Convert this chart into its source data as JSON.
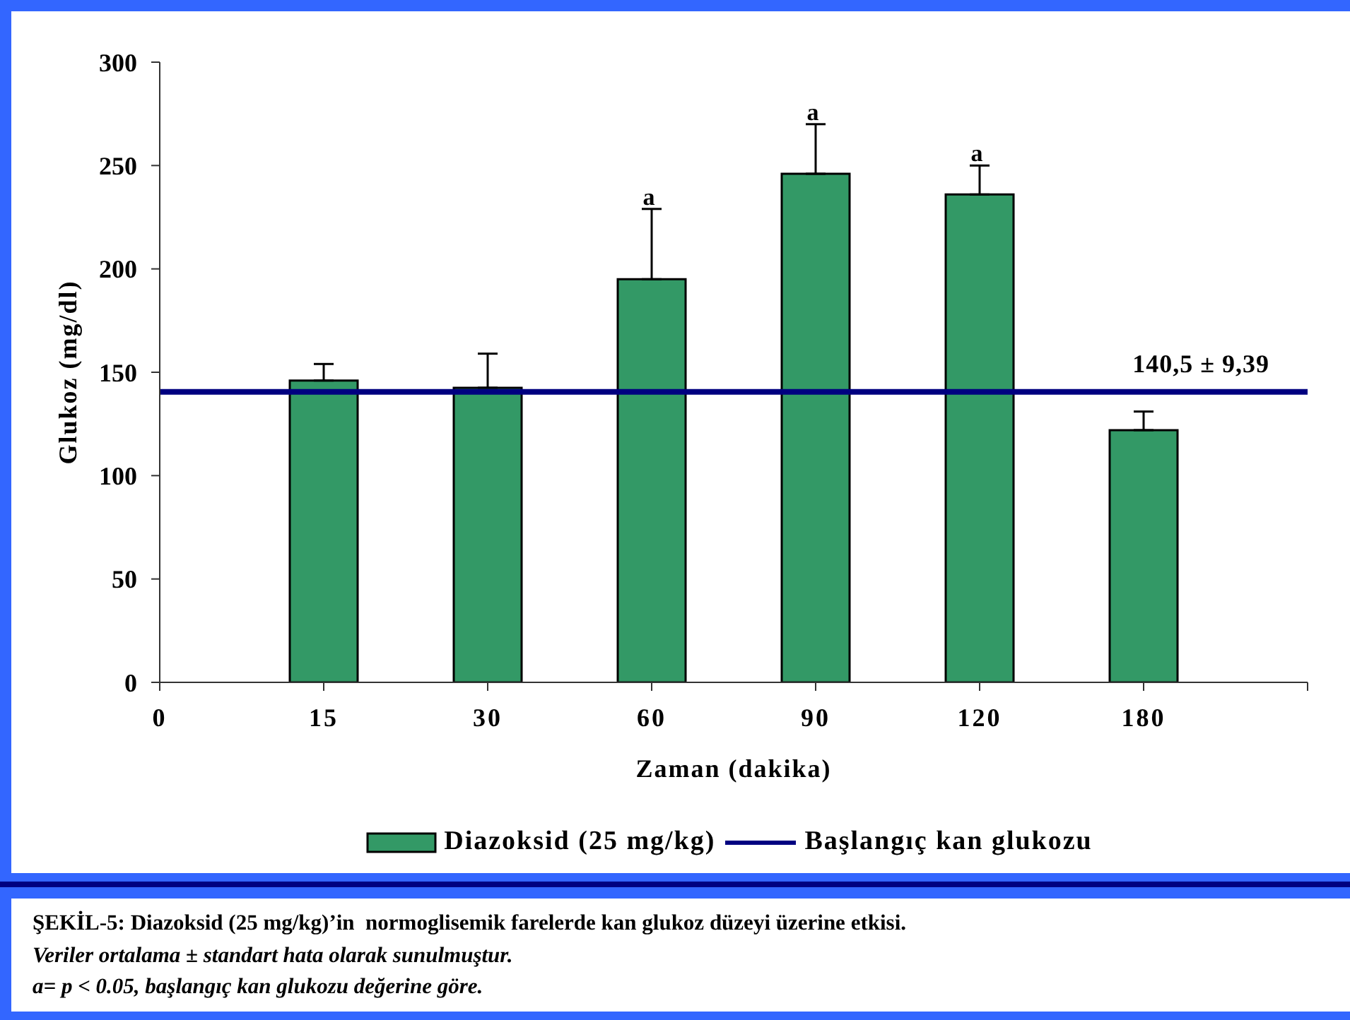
{
  "chart_data": {
    "type": "bar",
    "xlabel": "Zaman (dakika)",
    "ylabel": "Glukoz (mg/dl)",
    "categories": [
      "0",
      "15",
      "30",
      "60",
      "90",
      "120",
      "180"
    ],
    "series": [
      {
        "name": "Diazoksid (25 mg/kg)",
        "color": "#339966",
        "values": [
          null,
          146,
          142.5,
          195,
          246,
          236,
          122
        ],
        "errors": [
          null,
          [
            146,
            154
          ],
          [
            142.5,
            159
          ],
          [
            195,
            229
          ],
          [
            246,
            270
          ],
          [
            236,
            250
          ],
          [
            122,
            131
          ]
        ],
        "value_labels": [
          null,
          null,
          null,
          "a",
          "a",
          "a",
          null
        ]
      }
    ],
    "ylim": [
      0,
      300
    ],
    "yticks": [
      0,
      50,
      100,
      150,
      200,
      250,
      300
    ],
    "ref_lines": [
      {
        "axis": "y",
        "value": 140.5,
        "label": "Başlangıç kan glukozu",
        "color": "#000080"
      }
    ],
    "legend": "bottom",
    "annotations": [
      {
        "text": "140,5 ± 9,39",
        "y": 140.5
      },
      "ŞEKİL-5: Diazoksid (25 mg/kg)’in  normoglisemik farelerde kan glukoz düzeyi üzerine etkisi.",
      "Veriler ortalama ± standart hata olarak sunulmuştur.",
      "a= p < 0.05, başlangıç kan glukozu değerine göre."
    ]
  }
}
